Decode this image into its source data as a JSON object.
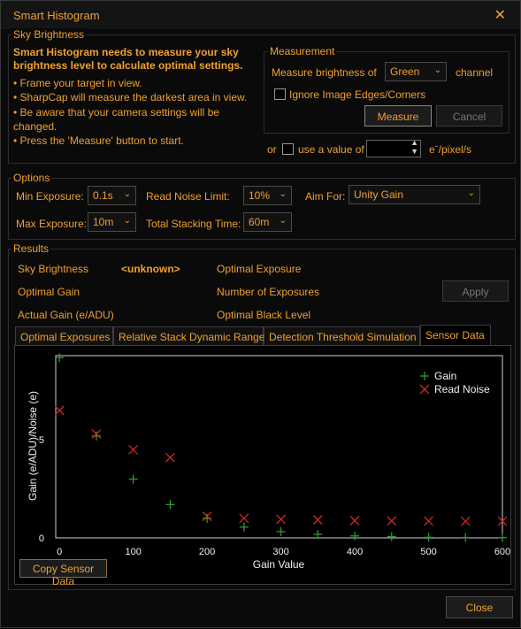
{
  "window": {
    "title": "Smart Histogram",
    "close_glyph": "✕"
  },
  "sky": {
    "group_label": "Sky Brightness",
    "intro": [
      "Smart Histogram needs to measure your sky",
      "brightness level to calculate optimal settings."
    ],
    "bullets": [
      "• Frame your target in view.",
      "• SharpCap will measure the darkest area in view.",
      "• Be aware that your camera settings will be",
      "changed.",
      "• Press the 'Measure' button to start."
    ],
    "or_label": "or",
    "use_value_label": "use a value of",
    "unit": "eˉ/pixel/s"
  },
  "measurement": {
    "group_label": "Measurement",
    "measure_of_label": "Measure brightness of",
    "channel_value": "Green",
    "channel_label": "channel",
    "ignore_edges_label": "Ignore Image Edges/Corners",
    "measure_button": "Measure",
    "cancel_button": "Cancel"
  },
  "options": {
    "group_label": "Options",
    "min_exposure_label": "Min Exposure:",
    "min_exposure_value": "0.1s",
    "read_noise_label": "Read Noise Limit:",
    "read_noise_value": "10%",
    "aim_for_label": "Aim For:",
    "aim_for_value": "Unity Gain",
    "max_exposure_label": "Max Exposure:",
    "max_exposure_value": "10m",
    "total_stacking_label": "Total Stacking Time:",
    "total_stacking_value": "60m"
  },
  "results": {
    "group_label": "Results",
    "sky_brightness_label": "Sky Brightness",
    "sky_brightness_value": "<unknown>",
    "optimal_exposure_label": "Optimal Exposure",
    "optimal_gain_label": "Optimal Gain",
    "number_exposures_label": "Number of Exposures",
    "apply_button": "Apply",
    "actual_gain_label": "Actual Gain (e/ADU)",
    "optimal_black_label": "Optimal Black Level"
  },
  "tabs": [
    {
      "label": "Optimal Exposures"
    },
    {
      "label": "Relative Stack Dynamic Range"
    },
    {
      "label": "Detection Threshold Simulation"
    },
    {
      "label": "Sensor Data"
    }
  ],
  "copy_button": "Copy Sensor Data",
  "close_button": "Close",
  "colors": {
    "accent": "#f0a030",
    "gain": "#2e9a2e",
    "read_noise": "#d02828"
  },
  "chart_data": {
    "type": "scatter",
    "xlabel": "Gain Value",
    "ylabel": "Gain (e/ADU)/Noise (e)",
    "xlim": [
      -5,
      600
    ],
    "ylim": [
      0,
      9.3
    ],
    "xticks": [
      0,
      100,
      200,
      300,
      400,
      500,
      600
    ],
    "yticks": [
      0,
      5
    ],
    "legend_position": "top-right",
    "series": [
      {
        "name": "Gain",
        "marker": "+",
        "color": "#2e9a2e",
        "x": [
          0,
          50,
          100,
          150,
          200,
          250,
          300,
          350,
          400,
          450,
          500,
          550,
          600
        ],
        "y": [
          9.2,
          5.2,
          3.0,
          1.7,
          1.0,
          0.55,
          0.32,
          0.18,
          0.1,
          0.06,
          0.03,
          0.02,
          0.01
        ]
      },
      {
        "name": "Read Noise",
        "marker": "x",
        "color": "#d02828",
        "x": [
          0,
          50,
          100,
          150,
          200,
          250,
          300,
          350,
          400,
          450,
          500,
          550,
          600
        ],
        "y": [
          6.5,
          5.3,
          4.5,
          4.1,
          1.1,
          1.0,
          0.95,
          0.92,
          0.88,
          0.87,
          0.86,
          0.85,
          0.85
        ]
      }
    ]
  }
}
